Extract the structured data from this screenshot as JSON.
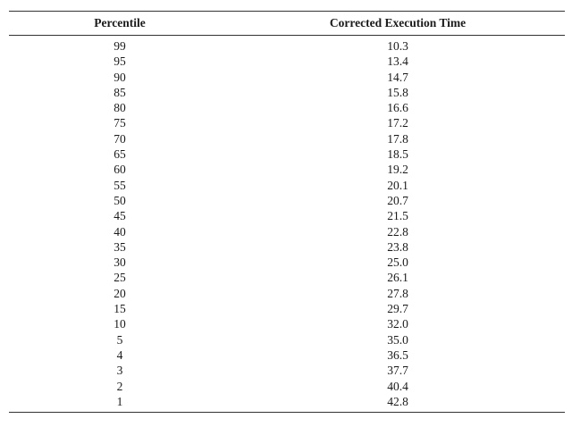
{
  "table": {
    "headers": [
      "Percentile",
      "Corrected Execution Time"
    ],
    "rows": [
      [
        "99",
        "10.3"
      ],
      [
        "95",
        "13.4"
      ],
      [
        "90",
        "14.7"
      ],
      [
        "85",
        "15.8"
      ],
      [
        "80",
        "16.6"
      ],
      [
        "75",
        "17.2"
      ],
      [
        "70",
        "17.8"
      ],
      [
        "65",
        "18.5"
      ],
      [
        "60",
        "19.2"
      ],
      [
        "55",
        "20.1"
      ],
      [
        "50",
        "20.7"
      ],
      [
        "45",
        "21.5"
      ],
      [
        "40",
        "22.8"
      ],
      [
        "35",
        "23.8"
      ],
      [
        "30",
        "25.0"
      ],
      [
        "25",
        "26.1"
      ],
      [
        "20",
        "27.8"
      ],
      [
        "15",
        "29.7"
      ],
      [
        "10",
        "32.0"
      ],
      [
        "5",
        "35.0"
      ],
      [
        "4",
        "36.5"
      ],
      [
        "3",
        "37.7"
      ],
      [
        "2",
        "40.4"
      ],
      [
        "1",
        "42.8"
      ]
    ]
  }
}
